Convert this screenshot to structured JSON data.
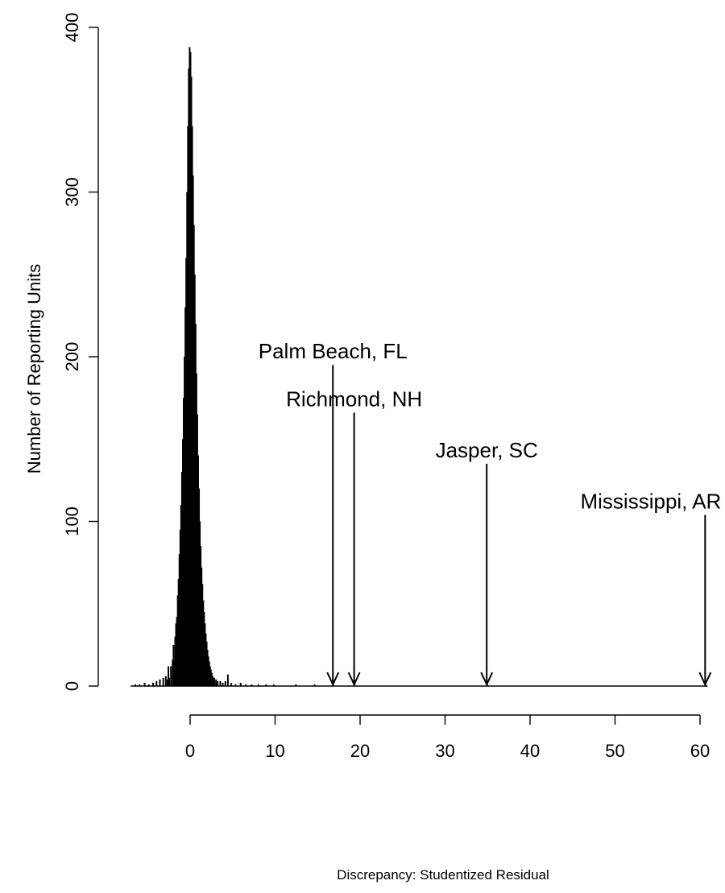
{
  "chart_data": {
    "type": "bar",
    "title": "",
    "xlabel": "Discrepancy: Studentized Residual",
    "ylabel": "Number of Reporting Units",
    "xlim": [
      -7,
      61
    ],
    "ylim": [
      0,
      400
    ],
    "x_ticks": [
      0,
      10,
      20,
      30,
      40,
      50,
      60
    ],
    "y_ticks": [
      0,
      100,
      200,
      300,
      400
    ],
    "grid": false,
    "legend": "none",
    "bar_color": "#000000",
    "bin_width": 0.1,
    "bins": [
      {
        "x": -6.5,
        "value": 1
      },
      {
        "x": -6.0,
        "value": 1
      },
      {
        "x": -5.4,
        "value": 2
      },
      {
        "x": -4.9,
        "value": 1
      },
      {
        "x": -4.4,
        "value": 2
      },
      {
        "x": -4.0,
        "value": 3
      },
      {
        "x": -3.6,
        "value": 4
      },
      {
        "x": -3.2,
        "value": 5
      },
      {
        "x": -2.9,
        "value": 6
      },
      {
        "x": -2.7,
        "value": 4
      },
      {
        "x": -2.6,
        "value": 12
      },
      {
        "x": -2.5,
        "value": 5
      },
      {
        "x": -2.3,
        "value": 12
      },
      {
        "x": -2.1,
        "value": 16
      },
      {
        "x": -2.0,
        "value": 25
      },
      {
        "x": -1.9,
        "value": 15
      },
      {
        "x": -1.8,
        "value": 30
      },
      {
        "x": -1.7,
        "value": 38
      },
      {
        "x": -1.6,
        "value": 42
      },
      {
        "x": -1.5,
        "value": 55
      },
      {
        "x": -1.4,
        "value": 65
      },
      {
        "x": -1.3,
        "value": 80
      },
      {
        "x": -1.2,
        "value": 95
      },
      {
        "x": -1.1,
        "value": 110
      },
      {
        "x": -1.0,
        "value": 130
      },
      {
        "x": -0.9,
        "value": 150
      },
      {
        "x": -0.8,
        "value": 175
      },
      {
        "x": -0.7,
        "value": 200
      },
      {
        "x": -0.6,
        "value": 230
      },
      {
        "x": -0.5,
        "value": 260
      },
      {
        "x": -0.4,
        "value": 300
      },
      {
        "x": -0.3,
        "value": 340
      },
      {
        "x": -0.2,
        "value": 375
      },
      {
        "x": -0.1,
        "value": 388
      },
      {
        "x": 0.0,
        "value": 385
      },
      {
        "x": 0.1,
        "value": 370
      },
      {
        "x": 0.2,
        "value": 340
      },
      {
        "x": 0.3,
        "value": 310
      },
      {
        "x": 0.4,
        "value": 280
      },
      {
        "x": 0.5,
        "value": 250
      },
      {
        "x": 0.6,
        "value": 220
      },
      {
        "x": 0.7,
        "value": 190
      },
      {
        "x": 0.8,
        "value": 165
      },
      {
        "x": 0.9,
        "value": 140
      },
      {
        "x": 1.0,
        "value": 120
      },
      {
        "x": 1.1,
        "value": 100
      },
      {
        "x": 1.2,
        "value": 85
      },
      {
        "x": 1.3,
        "value": 72
      },
      {
        "x": 1.4,
        "value": 62
      },
      {
        "x": 1.5,
        "value": 52
      },
      {
        "x": 1.6,
        "value": 45
      },
      {
        "x": 1.7,
        "value": 38
      },
      {
        "x": 1.8,
        "value": 32
      },
      {
        "x": 1.9,
        "value": 27
      },
      {
        "x": 2.0,
        "value": 22
      },
      {
        "x": 2.1,
        "value": 18
      },
      {
        "x": 2.2,
        "value": 15
      },
      {
        "x": 2.3,
        "value": 12
      },
      {
        "x": 2.4,
        "value": 10
      },
      {
        "x": 2.5,
        "value": 8
      },
      {
        "x": 2.6,
        "value": 6
      },
      {
        "x": 2.8,
        "value": 5
      },
      {
        "x": 3.0,
        "value": 4
      },
      {
        "x": 3.2,
        "value": 3
      },
      {
        "x": 3.5,
        "value": 3
      },
      {
        "x": 3.8,
        "value": 2
      },
      {
        "x": 4.1,
        "value": 3
      },
      {
        "x": 4.4,
        "value": 7
      },
      {
        "x": 4.8,
        "value": 2
      },
      {
        "x": 5.3,
        "value": 1
      },
      {
        "x": 5.9,
        "value": 2
      },
      {
        "x": 6.5,
        "value": 1
      },
      {
        "x": 7.2,
        "value": 1
      },
      {
        "x": 8.0,
        "value": 1
      },
      {
        "x": 8.9,
        "value": 1
      },
      {
        "x": 9.8,
        "value": 1
      },
      {
        "x": 12.4,
        "value": 1
      },
      {
        "x": 14.6,
        "value": 1
      },
      {
        "x": 16.8,
        "value": 1
      },
      {
        "x": 19.3,
        "value": 1
      },
      {
        "x": 34.9,
        "value": 1
      },
      {
        "x": 60.6,
        "value": 1
      }
    ],
    "annotations": [
      {
        "label": "Palm Beach, FL",
        "x": 16.8,
        "y": 195
      },
      {
        "label": "Richmond, NH",
        "x": 19.3,
        "y": 166
      },
      {
        "label": "Jasper, SC",
        "x": 34.9,
        "y": 135
      },
      {
        "label": "Mississippi, AR",
        "x": 60.6,
        "y": 104
      }
    ]
  }
}
